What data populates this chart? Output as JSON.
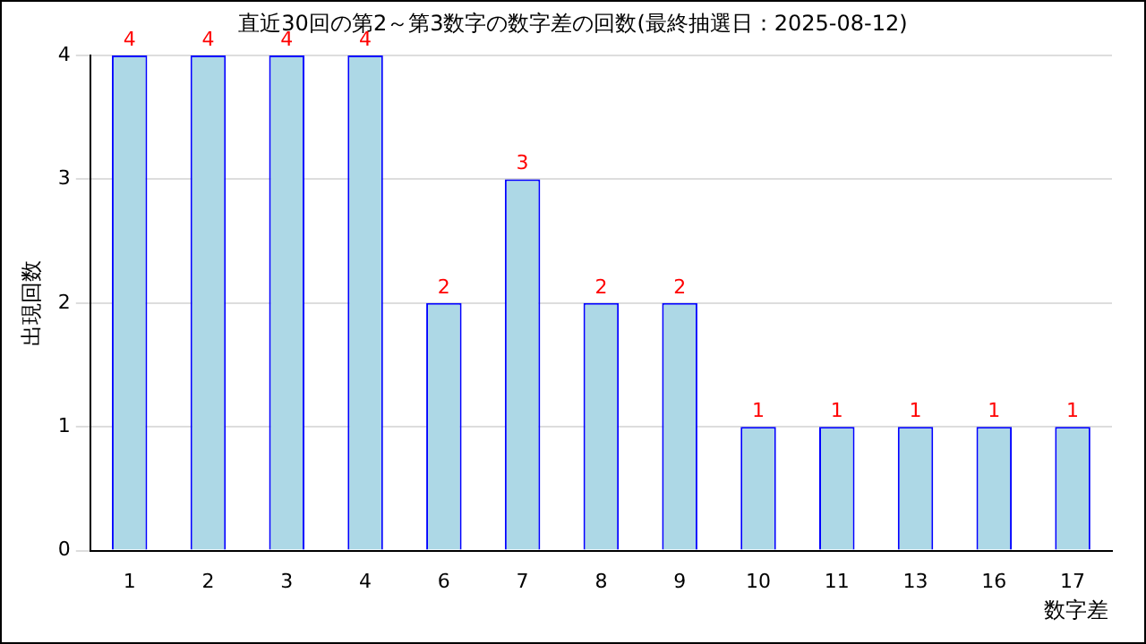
{
  "chart_data": {
    "type": "bar",
    "title": "直近30回の第2～第3数字の数字差の回数(最終抽選日：2025-08-12)",
    "xlabel": "数字差",
    "ylabel": "出現回数",
    "categories": [
      "1",
      "2",
      "3",
      "4",
      "6",
      "7",
      "8",
      "9",
      "10",
      "11",
      "13",
      "16",
      "17"
    ],
    "values": [
      4,
      4,
      4,
      4,
      2,
      3,
      2,
      2,
      1,
      1,
      1,
      1,
      1
    ],
    "color": "#add8e6",
    "ylim": [
      0,
      4
    ],
    "yticks": [
      0,
      1,
      2,
      3,
      4
    ],
    "grid": "y",
    "data_labels": true,
    "legend": false
  }
}
